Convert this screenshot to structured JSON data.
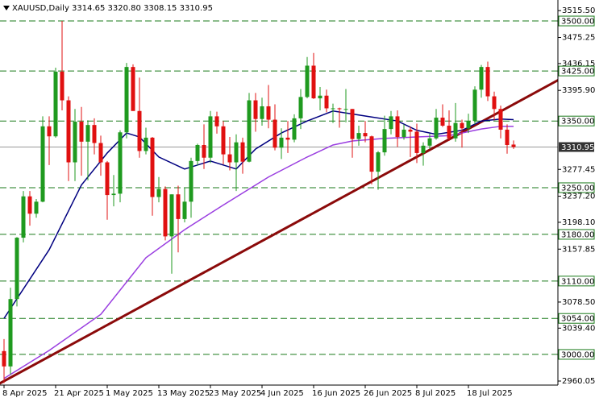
{
  "chart_data": {
    "type": "candlestick",
    "title": "XAUUSD,Daily",
    "subtitle": "3314.65 3320.80 3308.15 3310.95",
    "categories": [
      "8 Apr 2025",
      null,
      null,
      null,
      null,
      null,
      null,
      null,
      "21 Apr 2025",
      null,
      null,
      null,
      null,
      null,
      null,
      null,
      "1 May 2025",
      null,
      null,
      null,
      null,
      null,
      null,
      null,
      "13 May 2025",
      null,
      null,
      null,
      null,
      null,
      null,
      null,
      "23 May 2025",
      null,
      null,
      null,
      null,
      null,
      null,
      null,
      "4 Jun 2025",
      null,
      null,
      null,
      null,
      null,
      null,
      null,
      "16 Jun 2025",
      null,
      null,
      null,
      null,
      null,
      null,
      null,
      "26 Jun 2025",
      null,
      null,
      null,
      null,
      null,
      null,
      null,
      "8 Jul 2025",
      null,
      null,
      null,
      null,
      null,
      null,
      null,
      "18 Jul 2025",
      null,
      null,
      null,
      null,
      null,
      null,
      null
    ],
    "open": [
      3005,
      2982,
      3083,
      3175,
      3237,
      3211,
      3229,
      3342,
      3327,
      3424,
      3381,
      3288,
      3349,
      3319,
      3344,
      3317,
      3288,
      3239,
      3241,
      3333,
      3431,
      3365,
      3305,
      3325,
      3236,
      3248,
      3177,
      3240,
      3203,
      3229,
      3290,
      3314,
      3295,
      3357,
      3342,
      3300,
      3288,
      3318,
      3289,
      3381,
      3353,
      3372,
      3352,
      3310,
      3325,
      3322,
      3354,
      3386,
      3433,
      3384,
      3388,
      3369,
      3369,
      3368,
      3368,
      3323,
      3332,
      3327,
      3274,
      3303,
      3338,
      3357,
      3326,
      3337,
      3334,
      3302,
      3313,
      3324,
      3355,
      3343,
      3324,
      3347,
      3339,
      3350,
      3397,
      3431,
      3387,
      3368,
      3337,
      3314.65
    ],
    "high": [
      3023,
      3100,
      3176,
      3245,
      3245,
      3233,
      3357,
      3357,
      3430,
      3500,
      3387,
      3368,
      3371,
      3351,
      3354,
      3328,
      3290,
      3269,
      3336,
      3437,
      3435,
      3415,
      3340,
      3326,
      3266,
      3252,
      3240,
      3253,
      3250,
      3295,
      3316,
      3345,
      3365,
      3364,
      3350,
      3326,
      3330,
      3325,
      3392,
      3392,
      3385,
      3404,
      3375,
      3339,
      3350,
      3360,
      3398,
      3446,
      3452,
      3401,
      3397,
      3376,
      3370,
      3398,
      3368,
      3343,
      3350,
      3328,
      3305,
      3358,
      3365,
      3366,
      3345,
      3342,
      3346,
      3318,
      3331,
      3368,
      3375,
      3366,
      3377,
      3352,
      3361,
      3402,
      3434,
      3439,
      3394,
      3373,
      3345,
      3320.8
    ],
    "low": [
      2957,
      2970,
      3072,
      3168,
      3193,
      3205,
      3228,
      3284,
      3325,
      3366,
      3260,
      3260,
      3268,
      3261,
      3300,
      3268,
      3202,
      3222,
      3228,
      3324,
      3366,
      3295,
      3300,
      3208,
      3228,
      3171,
      3121,
      3153,
      3198,
      3205,
      3283,
      3278,
      3287,
      3331,
      3285,
      3276,
      3245,
      3271,
      3288,
      3334,
      3343,
      3339,
      3306,
      3293,
      3302,
      3318,
      3338,
      3384,
      3383,
      3366,
      3363,
      3347,
      3340,
      3348,
      3295,
      3313,
      3318,
      3255,
      3247,
      3298,
      3330,
      3311,
      3322,
      3296,
      3287,
      3283,
      3308,
      3322,
      3341,
      3320,
      3319,
      3310,
      3332,
      3345,
      3385,
      3380,
      3351,
      3324,
      3301,
      3308.15
    ],
    "close": [
      2982,
      3083,
      3175,
      3237,
      3211,
      3229,
      3342,
      3327,
      3424,
      3381,
      3288,
      3349,
      3319,
      3344,
      3317,
      3288,
      3239,
      3241,
      3333,
      3431,
      3365,
      3305,
      3325,
      3236,
      3248,
      3177,
      3240,
      3203,
      3229,
      3290,
      3314,
      3295,
      3357,
      3342,
      3300,
      3288,
      3318,
      3289,
      3381,
      3353,
      3372,
      3352,
      3310,
      3325,
      3322,
      3354,
      3386,
      3433,
      3384,
      3388,
      3369,
      3369,
      3368,
      3368,
      3323,
      3332,
      3327,
      3274,
      3303,
      3338,
      3357,
      3326,
      3337,
      3334,
      3302,
      3313,
      3324,
      3355,
      3343,
      3324,
      3347,
      3339,
      3350,
      3397,
      3431,
      3387,
      3368,
      3337,
      3314,
      3310.95
    ],
    "up_color": "#1f9a1f",
    "down_color": "#e01010",
    "ylim": [
      2954,
      3525.4
    ],
    "yticks": [
      {
        "value": 3515.5,
        "label": "3515.50"
      },
      {
        "value": 3475.25,
        "label": "3475.25"
      },
      {
        "value": 3436.15,
        "label": "3436.15"
      },
      {
        "value": 3395.9,
        "label": "3395.90"
      },
      {
        "value": 3277.45,
        "label": "3277.45"
      },
      {
        "value": 3237.2,
        "label": "3237.20"
      },
      {
        "value": 3198.1,
        "label": "3198.10"
      },
      {
        "value": 3157.85,
        "label": "3157.85"
      },
      {
        "value": 3078.5,
        "label": "3078.50"
      },
      {
        "value": 3039.4,
        "label": "3039.40"
      },
      {
        "value": 2960.05,
        "label": "2960.05"
      }
    ],
    "levels": [
      {
        "value": 3500,
        "label": "3500.00"
      },
      {
        "value": 3425,
        "label": "3425.00"
      },
      {
        "value": 3350,
        "label": "3350.00"
      },
      {
        "value": 3250,
        "label": "3250.00"
      },
      {
        "value": 3180,
        "label": "3180.00"
      },
      {
        "value": 3110,
        "label": "3110.00"
      },
      {
        "value": 3054,
        "label": "3054.00"
      },
      {
        "value": 3000,
        "label": "3000.00"
      }
    ],
    "level_color": "#1a7a1a",
    "current_price": {
      "value": 3310.95,
      "label": "3310.95"
    },
    "lines": [
      {
        "color": "#000080",
        "x": [
          0,
          7,
          12,
          16,
          19,
          21,
          24,
          28,
          32,
          36,
          39,
          43,
          47,
          51,
          53,
          57,
          61,
          64,
          67,
          71,
          74,
          77,
          79
        ],
        "values": [
          3054,
          3157,
          3254,
          3302,
          3332,
          3326,
          3296,
          3278,
          3290,
          3278,
          3308,
          3332,
          3350,
          3365,
          3362,
          3356,
          3350,
          3336,
          3330,
          3336,
          3350,
          3353,
          3352
        ]
      },
      {
        "color": "#9a3ee0",
        "x": [
          0,
          7,
          15,
          22,
          28,
          34,
          41,
          47,
          51,
          54,
          59,
          64,
          69,
          74,
          77,
          79
        ],
        "values": [
          2964,
          3006,
          3060,
          3145,
          3187,
          3224,
          3266,
          3296,
          3314,
          3320,
          3324,
          3326,
          3328,
          3338,
          3342,
          3342
        ]
      }
    ],
    "trendline": {
      "color": "#8b0a0a",
      "x": [
        0,
        79
      ],
      "values": [
        2960,
        3375
      ]
    },
    "grid": false
  }
}
